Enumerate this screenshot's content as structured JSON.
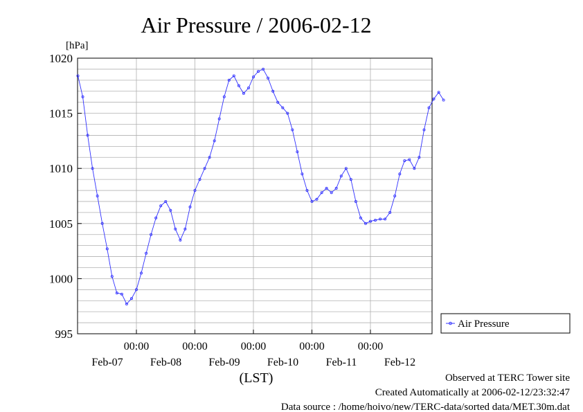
{
  "chart_data": {
    "type": "line",
    "title": "Air Pressure / 2006-02-12",
    "ylabel": "[hPa]",
    "xlabel": "(LST)",
    "ylim": [
      995,
      1020
    ],
    "yticks": [
      995,
      1000,
      1005,
      1010,
      1015,
      1020
    ],
    "xlim": [
      "2006-02-06 00:00",
      "2006-02-12 00:00"
    ],
    "x_tick_labels": [
      {
        "time": "2006-02-07 00:00",
        "label": "00:00",
        "date": "Feb-07"
      },
      {
        "time": "2006-02-08 00:00",
        "label": "00:00",
        "date": "Feb-08"
      },
      {
        "time": "2006-02-09 00:00",
        "label": "00:00",
        "date": "Feb-09"
      },
      {
        "time": "2006-02-10 00:00",
        "label": "00:00",
        "date": "Feb-10"
      },
      {
        "time": "2006-02-11 00:00",
        "label": "00:00",
        "date": "Feb-11"
      }
    ],
    "extra_date_label": {
      "time": "2006-02-12 00:00",
      "text": "Feb-12"
    },
    "grid": true,
    "legend_position": "right",
    "series": [
      {
        "name": "Air Pressure",
        "color": "#3030ff",
        "marker": "circle",
        "points": [
          [
            "2006-02-06 00:00",
            1018.4
          ],
          [
            "2006-02-06 02:00",
            1016.5
          ],
          [
            "2006-02-06 04:00",
            1013.0
          ],
          [
            "2006-02-06 06:00",
            1010.0
          ],
          [
            "2006-02-06 08:00",
            1007.5
          ],
          [
            "2006-02-06 10:00",
            1005.0
          ],
          [
            "2006-02-06 12:00",
            1002.7
          ],
          [
            "2006-02-06 14:00",
            1000.2
          ],
          [
            "2006-02-06 16:00",
            998.7
          ],
          [
            "2006-02-06 18:00",
            998.6
          ],
          [
            "2006-02-06 20:00",
            997.7
          ],
          [
            "2006-02-06 22:00",
            998.2
          ],
          [
            "2006-02-07 00:00",
            999.0
          ],
          [
            "2006-02-07 02:00",
            1000.5
          ],
          [
            "2006-02-07 04:00",
            1002.3
          ],
          [
            "2006-02-07 06:00",
            1004.0
          ],
          [
            "2006-02-07 08:00",
            1005.5
          ],
          [
            "2006-02-07 10:00",
            1006.6
          ],
          [
            "2006-02-07 12:00",
            1007.0
          ],
          [
            "2006-02-07 14:00",
            1006.2
          ],
          [
            "2006-02-07 16:00",
            1004.5
          ],
          [
            "2006-02-07 18:00",
            1003.5
          ],
          [
            "2006-02-07 20:00",
            1004.5
          ],
          [
            "2006-02-07 22:00",
            1006.5
          ],
          [
            "2006-02-08 00:00",
            1008.0
          ],
          [
            "2006-02-08 02:00",
            1009.0
          ],
          [
            "2006-02-08 04:00",
            1010.0
          ],
          [
            "2006-02-08 06:00",
            1011.0
          ],
          [
            "2006-02-08 08:00",
            1012.5
          ],
          [
            "2006-02-08 10:00",
            1014.5
          ],
          [
            "2006-02-08 12:00",
            1016.5
          ],
          [
            "2006-02-08 14:00",
            1018.0
          ],
          [
            "2006-02-08 16:00",
            1018.4
          ],
          [
            "2006-02-08 18:00",
            1017.5
          ],
          [
            "2006-02-08 20:00",
            1016.8
          ],
          [
            "2006-02-08 22:00",
            1017.3
          ],
          [
            "2006-02-09 00:00",
            1018.3
          ],
          [
            "2006-02-09 02:00",
            1018.8
          ],
          [
            "2006-02-09 04:00",
            1019.0
          ],
          [
            "2006-02-09 06:00",
            1018.2
          ],
          [
            "2006-02-09 08:00",
            1017.0
          ],
          [
            "2006-02-09 10:00",
            1016.0
          ],
          [
            "2006-02-09 12:00",
            1015.5
          ],
          [
            "2006-02-09 14:00",
            1015.0
          ],
          [
            "2006-02-09 16:00",
            1013.5
          ],
          [
            "2006-02-09 18:00",
            1011.5
          ],
          [
            "2006-02-09 20:00",
            1009.5
          ],
          [
            "2006-02-09 22:00",
            1008.0
          ],
          [
            "2006-02-10 00:00",
            1007.0
          ],
          [
            "2006-02-10 02:00",
            1007.2
          ],
          [
            "2006-02-10 04:00",
            1007.8
          ],
          [
            "2006-02-10 06:00",
            1008.2
          ],
          [
            "2006-02-10 08:00",
            1007.8
          ],
          [
            "2006-02-10 10:00",
            1008.2
          ],
          [
            "2006-02-10 12:00",
            1009.3
          ],
          [
            "2006-02-10 14:00",
            1010.0
          ],
          [
            "2006-02-10 16:00",
            1009.0
          ],
          [
            "2006-02-10 18:00",
            1007.0
          ],
          [
            "2006-02-10 20:00",
            1005.5
          ],
          [
            "2006-02-10 22:00",
            1005.0
          ],
          [
            "2006-02-11 00:00",
            1005.2
          ],
          [
            "2006-02-11 02:00",
            1005.3
          ],
          [
            "2006-02-11 04:00",
            1005.4
          ],
          [
            "2006-02-11 06:00",
            1005.4
          ],
          [
            "2006-02-11 08:00",
            1006.0
          ],
          [
            "2006-02-11 10:00",
            1007.5
          ],
          [
            "2006-02-11 12:00",
            1009.5
          ],
          [
            "2006-02-11 14:00",
            1010.7
          ],
          [
            "2006-02-11 16:00",
            1010.8
          ],
          [
            "2006-02-11 18:00",
            1010.0
          ],
          [
            "2006-02-11 20:00",
            1011.0
          ],
          [
            "2006-02-11 22:00",
            1013.5
          ],
          [
            "2006-02-12 00:00",
            1015.5
          ],
          [
            "2006-02-12 02:00",
            1016.3
          ],
          [
            "2006-02-12 04:00",
            1016.9
          ],
          [
            "2006-02-12 06:00",
            1016.2
          ]
        ]
      }
    ]
  },
  "footer": {
    "line1": "Observed at TERC Tower site",
    "line2": "Created Automatically at 2006-02-12/23:32:47",
    "line3": "Data source : /home/hoivo/new/TERC-data/sorted  data/MET.30m.dat"
  }
}
